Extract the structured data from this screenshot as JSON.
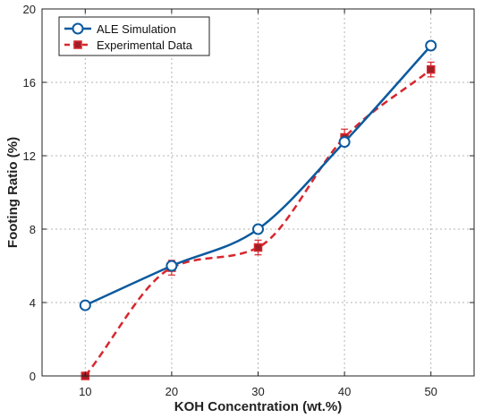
{
  "chart_data": {
    "type": "line",
    "xlabel": "KOH Concentration (wt.%)",
    "ylabel": "Footing Ratio (%)",
    "xlim": [
      5,
      55
    ],
    "ylim": [
      0,
      20
    ],
    "xticks": [
      "10",
      "20",
      "30",
      "40",
      "50"
    ],
    "yticks": [
      "0",
      "4",
      "8",
      "12",
      "16",
      "20"
    ],
    "grid": true,
    "legend_position": "top-left",
    "series": [
      {
        "name": "ALE Simulation",
        "x": [
          10,
          20,
          30,
          40,
          50
        ],
        "y": [
          3.85,
          6.0,
          8.0,
          12.75,
          18.0
        ],
        "color": "#0b5a9e",
        "line": "solid",
        "marker": "open-circle"
      },
      {
        "name": "Experimental Data",
        "x": [
          10,
          20,
          30,
          40,
          50
        ],
        "y": [
          0.0,
          5.9,
          7.0,
          13.0,
          16.7
        ],
        "error": [
          0.0,
          0.4,
          0.4,
          0.45,
          0.4
        ],
        "color": "#d8262e",
        "line": "dashed",
        "marker": "filled-square"
      }
    ]
  }
}
